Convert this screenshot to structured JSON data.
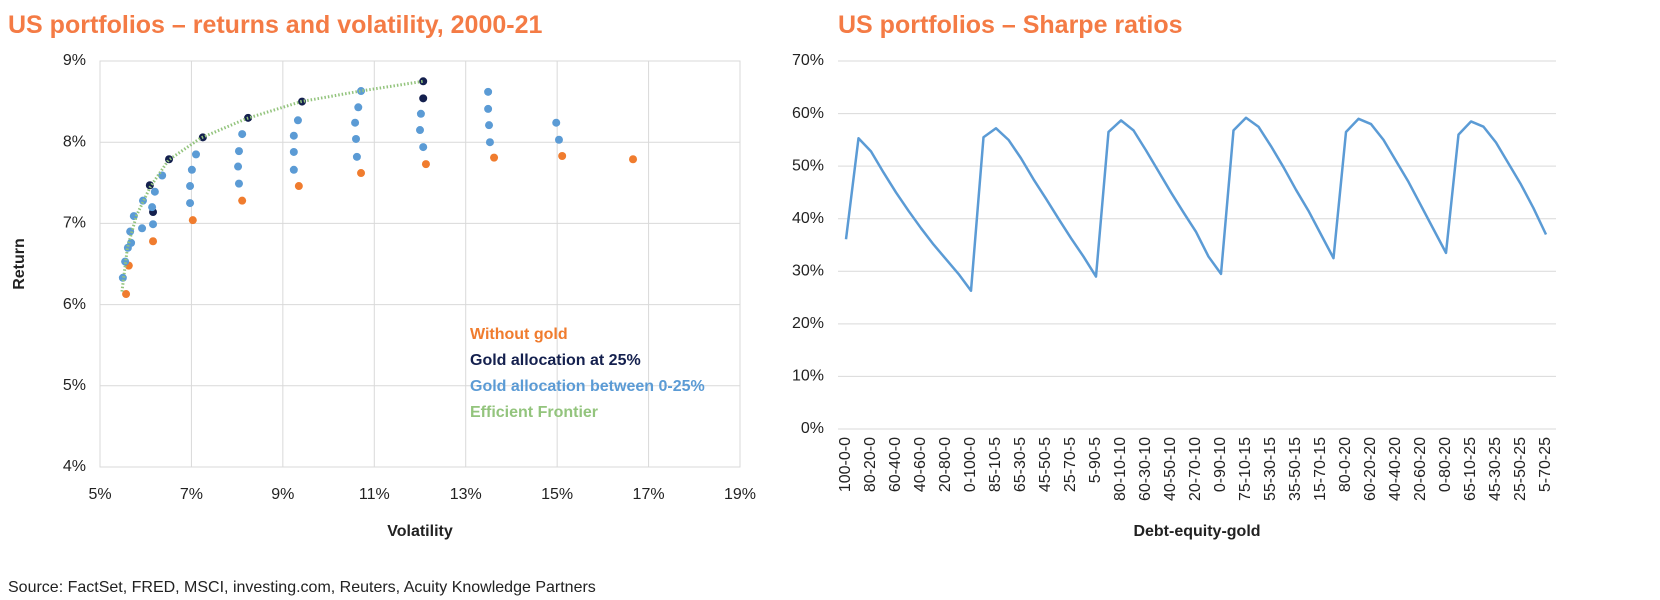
{
  "chart_data": [
    {
      "type": "scatter",
      "title": "US portfolios – returns and volatility, 2000-21",
      "xlabel": "Volatility",
      "ylabel": "Return",
      "xlim": [
        5,
        19
      ],
      "xticks": [
        {
          "value": 5,
          "label": "5%"
        },
        {
          "value": 7,
          "label": "7%"
        },
        {
          "value": 9,
          "label": "9%"
        },
        {
          "value": 11,
          "label": "11%"
        },
        {
          "value": 13,
          "label": "13%"
        },
        {
          "value": 15,
          "label": "15%"
        },
        {
          "value": 17,
          "label": "17%"
        },
        {
          "value": 19,
          "label": "19%"
        }
      ],
      "ylim": [
        4,
        9
      ],
      "yticks": [
        {
          "value": 4,
          "label": "4%"
        },
        {
          "value": 5,
          "label": "5%"
        },
        {
          "value": 6,
          "label": "6%"
        },
        {
          "value": 7,
          "label": "7%"
        },
        {
          "value": 8,
          "label": "8%"
        },
        {
          "value": 9,
          "label": "9%"
        }
      ],
      "grid": true,
      "legend": "lower right",
      "series": [
        {
          "name": "Without gold",
          "color": "#f07c2e",
          "x": [
            5.57,
            5.63,
            6.16,
            7.03,
            8.11,
            9.35,
            10.71,
            12.13,
            13.62,
            15.11,
            16.66
          ],
          "values": [
            6.13,
            6.48,
            6.78,
            7.04,
            7.28,
            7.46,
            7.62,
            7.73,
            7.81,
            7.83,
            7.79
          ]
        },
        {
          "name": "Gold allocation at 25%",
          "color": "#14204e",
          "x": [
            6.09,
            6.16,
            6.51,
            7.25,
            8.24,
            9.42,
            12.07,
            12.07
          ],
          "values": [
            7.47,
            7.14,
            7.79,
            8.06,
            8.3,
            8.5,
            8.75,
            8.54
          ]
        },
        {
          "name": "Gold allocation between 0-25%",
          "color": "#5b9bd5",
          "x": [
            5.5,
            5.55,
            5.61,
            5.68,
            5.66,
            5.74,
            5.92,
            6.16,
            5.94,
            6.2,
            6.36,
            6.14,
            6.97,
            6.97,
            7.01,
            7.1,
            8.04,
            8.02,
            8.04,
            8.11,
            9.24,
            9.24,
            9.24,
            9.33,
            10.62,
            10.6,
            10.58,
            10.65,
            10.71,
            12.07,
            12.0,
            12.02,
            13.53,
            13.51,
            13.49,
            13.49,
            15.04,
            14.98
          ],
          "values": [
            6.33,
            6.53,
            6.7,
            6.76,
            6.9,
            7.09,
            6.94,
            6.99,
            7.28,
            7.39,
            7.59,
            7.2,
            7.25,
            7.46,
            7.66,
            7.85,
            7.49,
            7.7,
            7.89,
            8.1,
            7.66,
            7.88,
            8.08,
            8.27,
            7.82,
            8.04,
            8.24,
            8.43,
            8.63,
            7.94,
            8.15,
            8.35,
            8.0,
            8.21,
            8.41,
            8.62,
            8.03,
            8.24
          ]
        },
        {
          "name": "Efficient Frontier",
          "color": "#93c47d",
          "line": true,
          "dash": "dotted",
          "x": [
            5.48,
            5.6,
            5.8,
            6.1,
            6.5,
            7.2,
            8.2,
            9.4,
            10.7,
            12.07
          ],
          "values": [
            6.16,
            6.7,
            7.1,
            7.45,
            7.78,
            8.05,
            8.29,
            8.5,
            8.63,
            8.75
          ]
        }
      ]
    },
    {
      "type": "line",
      "title": "US portfolios – Sharpe ratios",
      "xlabel": "Debt-equity-gold",
      "categories": [
        "100-0-0",
        null,
        "80-20-0",
        null,
        "60-40-0",
        null,
        "40-60-0",
        null,
        "20-80-0",
        null,
        "0-100-0",
        null,
        "85-10-5",
        null,
        "65-30-5",
        null,
        "45-50-5",
        null,
        "25-70-5",
        null,
        "5-90-5",
        null,
        "80-10-10",
        null,
        "60-30-10",
        null,
        "40-50-10",
        null,
        "20-70-10",
        null,
        "0-90-10",
        null,
        "75-10-15",
        null,
        "55-30-15",
        null,
        "35-50-15",
        null,
        "15-70-15",
        null,
        "80-0-20",
        null,
        "60-20-20",
        null,
        "40-40-20",
        null,
        "20-60-20",
        null,
        "0-80-20",
        null,
        "65-10-25",
        null,
        "45-30-25",
        null,
        "25-50-25",
        null,
        "5-70-25"
      ],
      "ylim": [
        0,
        70
      ],
      "yticks": [
        {
          "value": 0,
          "label": "0%"
        },
        {
          "value": 10,
          "label": "10%"
        },
        {
          "value": 20,
          "label": "20%"
        },
        {
          "value": 30,
          "label": "30%"
        },
        {
          "value": 40,
          "label": "40%"
        },
        {
          "value": 50,
          "label": "50%"
        },
        {
          "value": 60,
          "label": "60%"
        },
        {
          "value": 70,
          "label": "70%"
        }
      ],
      "grid": true,
      "series": [
        {
          "name": null,
          "color": "#5b9bd5",
          "values": [
            36.1,
            55.3,
            52.8,
            48.8,
            45.0,
            41.5,
            38.2,
            35.1,
            32.3,
            29.5,
            26.3,
            55.5,
            57.2,
            55.0,
            51.5,
            47.5,
            43.8,
            40.0,
            36.3,
            32.8,
            29.0,
            56.5,
            58.7,
            56.8,
            53.0,
            49.0,
            45.0,
            41.2,
            37.5,
            32.8,
            29.5,
            56.8,
            59.2,
            57.5,
            53.8,
            49.8,
            45.5,
            41.5,
            37.0,
            32.5,
            56.5,
            59.0,
            58.0,
            55.0,
            51.0,
            47.0,
            42.5,
            38.0,
            33.5,
            56.0,
            58.5,
            57.5,
            54.5,
            50.5,
            46.5,
            42.0,
            37.0
          ]
        }
      ]
    }
  ],
  "source": "Source: FactSet, FRED, MSCI, investing.com, Reuters, Acuity Knowledge Partners"
}
